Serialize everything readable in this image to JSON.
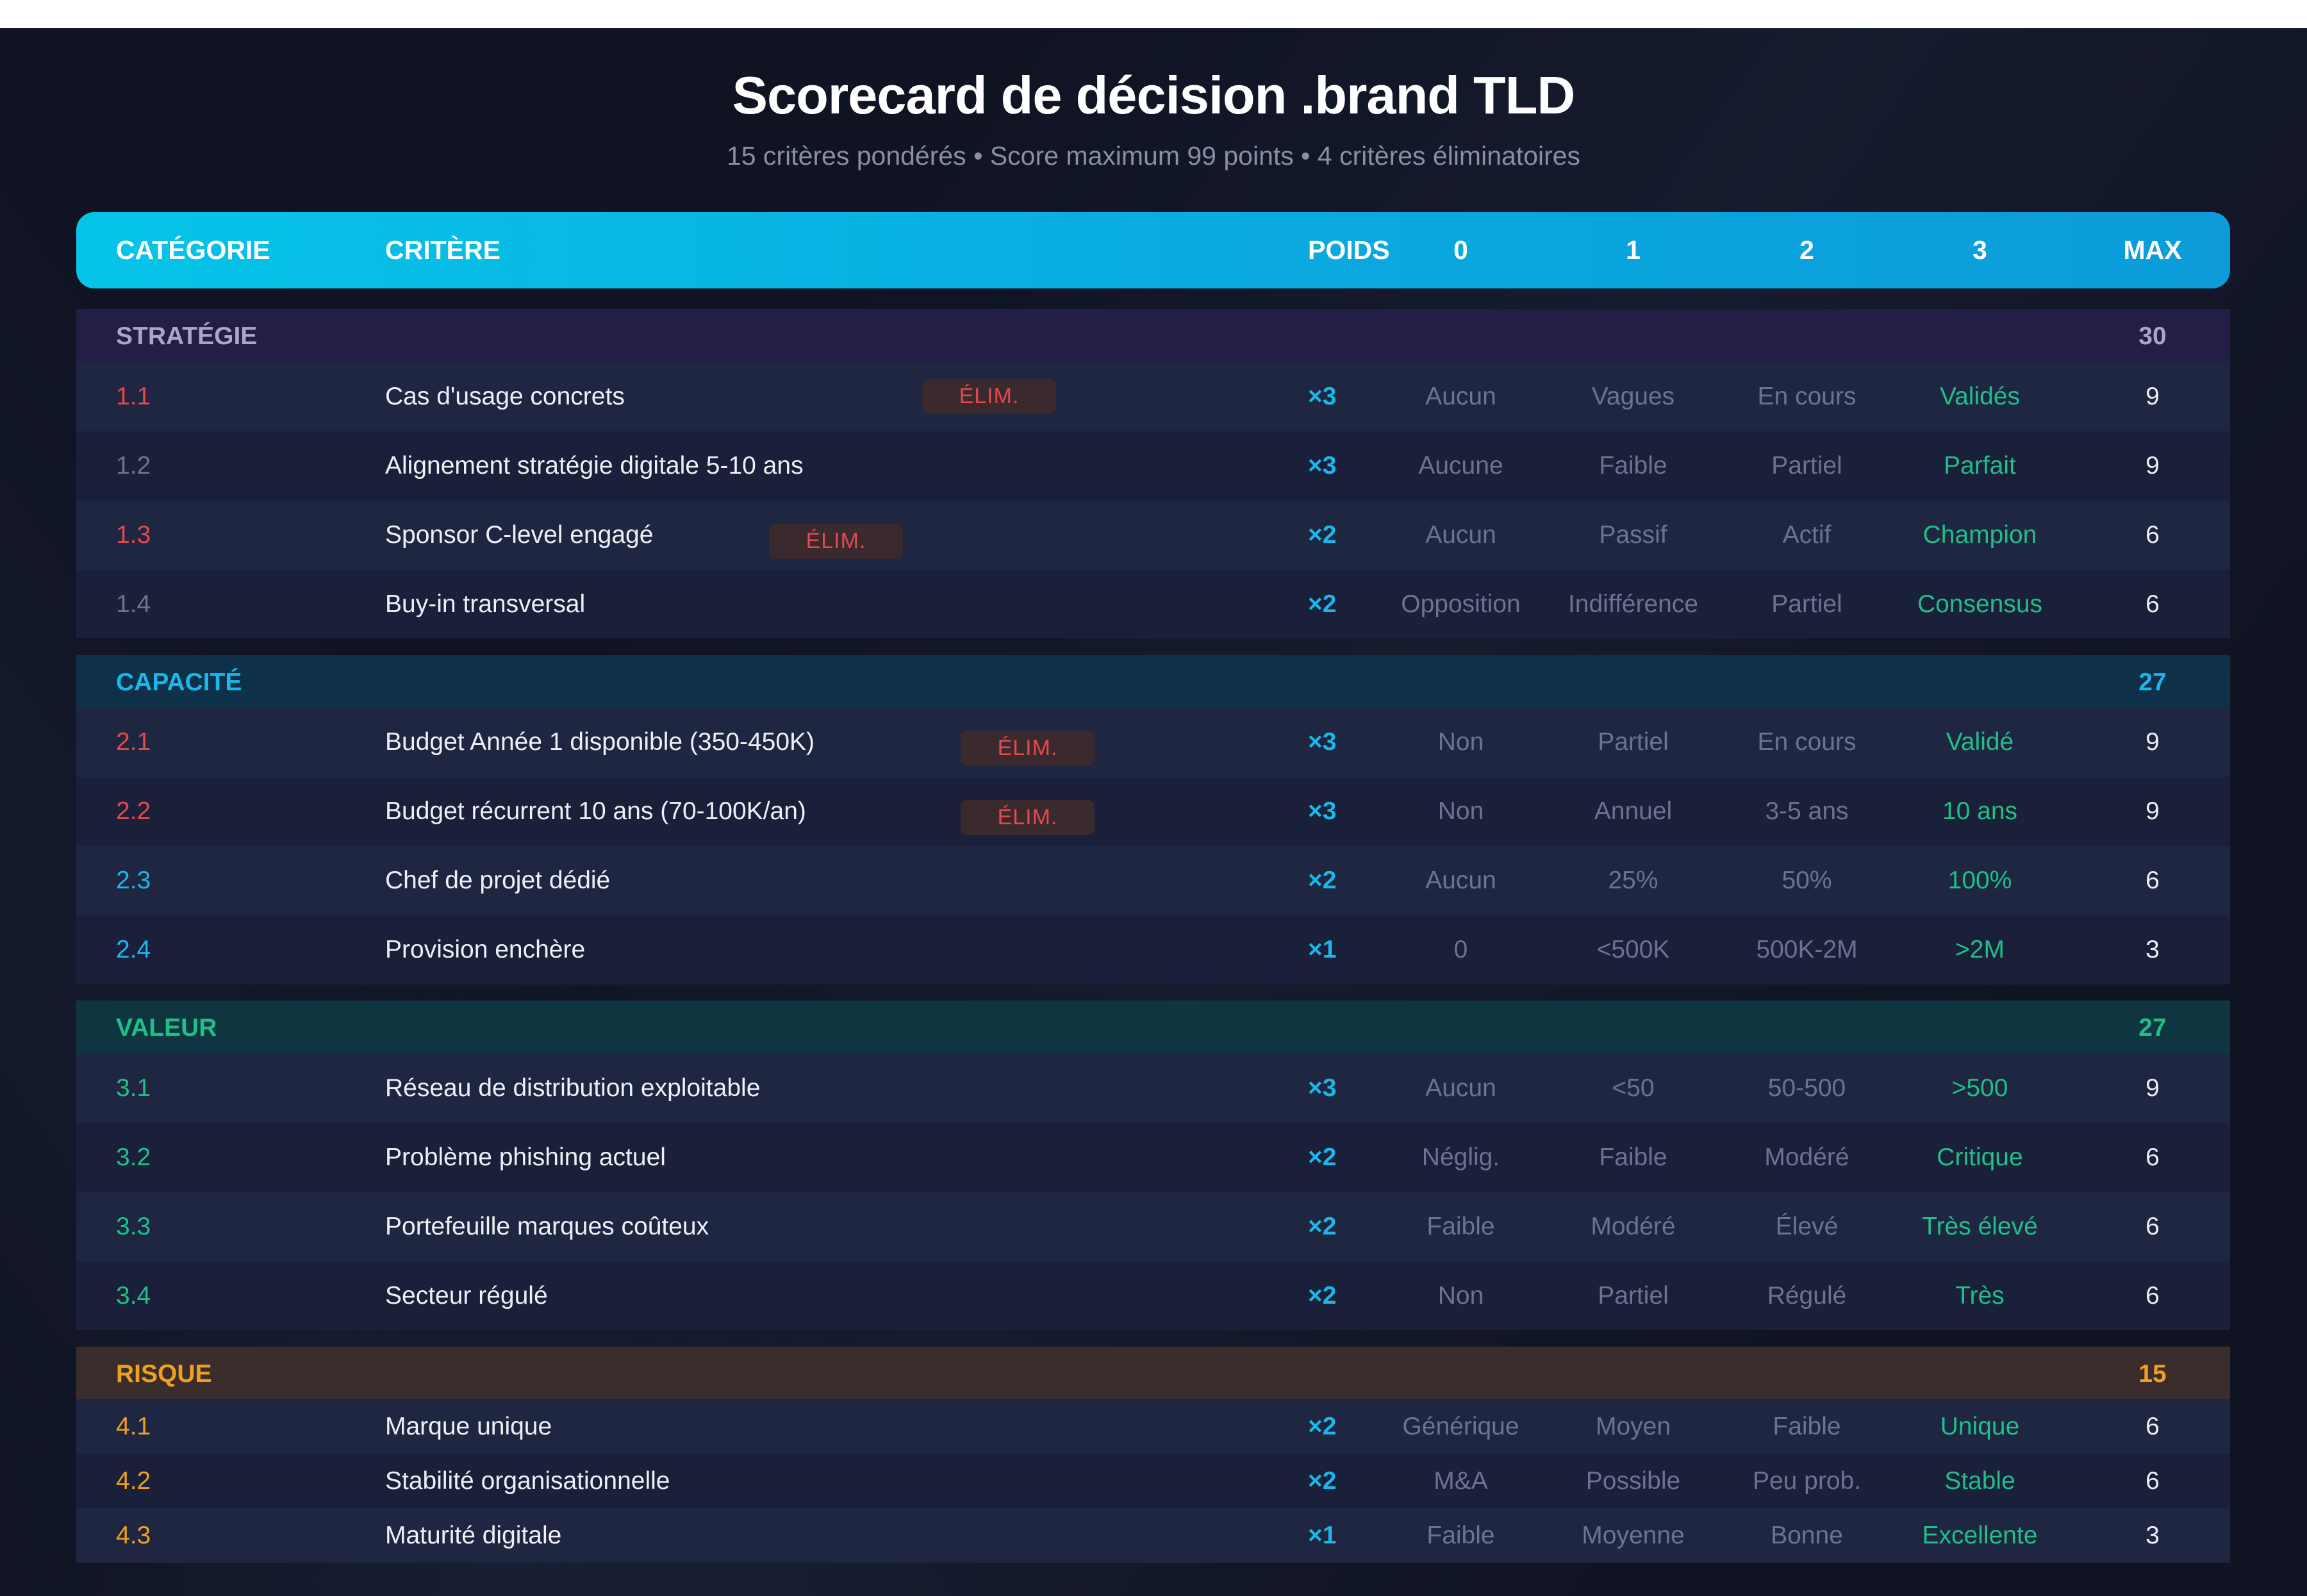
{
  "title": "Scorecard de décision .brand TLD",
  "subtitle": "15 critères pondérés • Score maximum 99 points • 4 critères éliminatoires",
  "columns": {
    "category": "CATÉGORIE",
    "criterion": "CRITÈRE",
    "weight": "POIDS",
    "s0": "0",
    "s1": "1",
    "s2": "2",
    "s3": "3",
    "max": "MAX"
  },
  "elim_label": "ÉLIM.",
  "colors": {
    "accent": "#06c4e8",
    "green": "#1fbf86",
    "red": "#e5484d",
    "orange": "#f0a020",
    "background": "#0f1322"
  },
  "sections": [
    {
      "name": "STRATÉGIE",
      "total": "30",
      "rows": [
        {
          "id": "1.1",
          "criterion": "Cas d'usage concrets",
          "elim": true,
          "weight": "×3",
          "levels": [
            "Aucun",
            "Vagues",
            "En cours",
            "Validés"
          ],
          "max": "9"
        },
        {
          "id": "1.2",
          "criterion": "Alignement stratégie digitale 5-10 ans",
          "elim": false,
          "weight": "×3",
          "levels": [
            "Aucune",
            "Faible",
            "Partiel",
            "Parfait"
          ],
          "max": "9"
        },
        {
          "id": "1.3",
          "criterion": "Sponsor C-level engagé",
          "elim": true,
          "weight": "×2",
          "levels": [
            "Aucun",
            "Passif",
            "Actif",
            "Champion"
          ],
          "max": "6"
        },
        {
          "id": "1.4",
          "criterion": "Buy-in transversal",
          "elim": false,
          "weight": "×2",
          "levels": [
            "Opposition",
            "Indifférence",
            "Partiel",
            "Consensus"
          ],
          "max": "6"
        }
      ]
    },
    {
      "name": "CAPACITÉ",
      "total": "27",
      "rows": [
        {
          "id": "2.1",
          "criterion": "Budget Année 1 disponible (350-450K)",
          "elim": true,
          "weight": "×3",
          "levels": [
            "Non",
            "Partiel",
            "En cours",
            "Validé"
          ],
          "max": "9"
        },
        {
          "id": "2.2",
          "criterion": "Budget récurrent 10 ans (70-100K/an)",
          "elim": true,
          "weight": "×3",
          "levels": [
            "Non",
            "Annuel",
            "3-5 ans",
            "10 ans"
          ],
          "max": "9"
        },
        {
          "id": "2.3",
          "criterion": "Chef de projet dédié",
          "elim": false,
          "weight": "×2",
          "levels": [
            "Aucun",
            "25%",
            "50%",
            "100%"
          ],
          "max": "6"
        },
        {
          "id": "2.4",
          "criterion": "Provision enchère",
          "elim": false,
          "weight": "×1",
          "levels": [
            "0",
            "<500K",
            "500K-2M",
            ">2M"
          ],
          "max": "3"
        }
      ]
    },
    {
      "name": "VALEUR",
      "total": "27",
      "rows": [
        {
          "id": "3.1",
          "criterion": "Réseau de distribution exploitable",
          "elim": false,
          "weight": "×3",
          "levels": [
            "Aucun",
            "<50",
            "50-500",
            ">500"
          ],
          "max": "9"
        },
        {
          "id": "3.2",
          "criterion": "Problème phishing actuel",
          "elim": false,
          "weight": "×2",
          "levels": [
            "Néglig.",
            "Faible",
            "Modéré",
            "Critique"
          ],
          "max": "6"
        },
        {
          "id": "3.3",
          "criterion": "Portefeuille marques coûteux",
          "elim": false,
          "weight": "×2",
          "levels": [
            "Faible",
            "Modéré",
            "Élevé",
            "Très élevé"
          ],
          "max": "6"
        },
        {
          "id": "3.4",
          "criterion": "Secteur régulé",
          "elim": false,
          "weight": "×2",
          "levels": [
            "Non",
            "Partiel",
            "Régulé",
            "Très"
          ],
          "max": "6"
        }
      ]
    },
    {
      "name": "RISQUE",
      "total": "15",
      "rows": [
        {
          "id": "4.1",
          "criterion": "Marque unique",
          "elim": false,
          "weight": "×2",
          "levels": [
            "Générique",
            "Moyen",
            "Faible",
            "Unique"
          ],
          "max": "6"
        },
        {
          "id": "4.2",
          "criterion": "Stabilité organisationnelle",
          "elim": false,
          "weight": "×2",
          "levels": [
            "M&A",
            "Possible",
            "Peu prob.",
            "Stable"
          ],
          "max": "6"
        },
        {
          "id": "4.3",
          "criterion": "Maturité digitale",
          "elim": false,
          "weight": "×1",
          "levels": [
            "Faible",
            "Moyenne",
            "Bonne",
            "Excellente"
          ],
          "max": "3"
        }
      ]
    }
  ]
}
